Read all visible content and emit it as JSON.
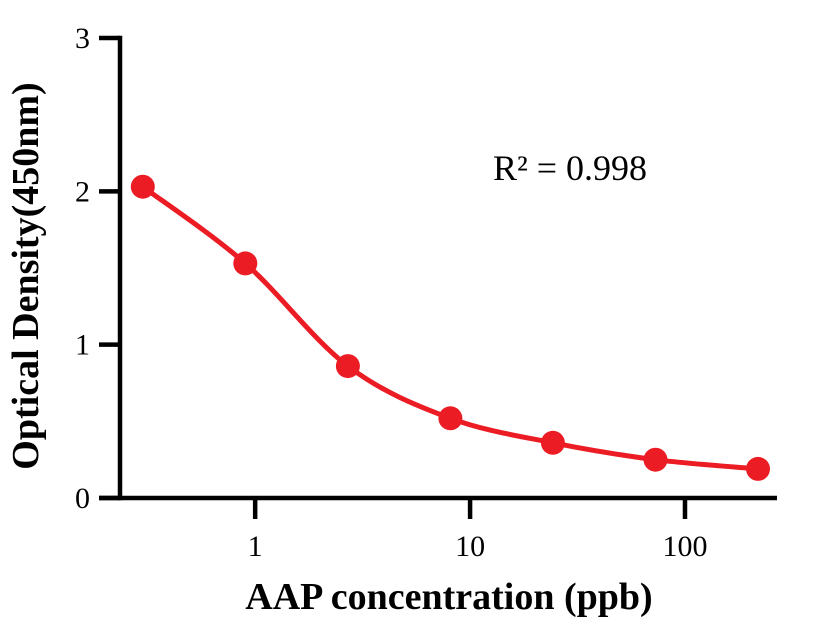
{
  "chart_data": {
    "type": "scatter",
    "subtype": "scatter-with-fit-curve",
    "x": [
      0.3,
      0.9,
      2.7,
      8.1,
      24.3,
      72.9,
      218.7
    ],
    "y": [
      2.03,
      1.53,
      0.86,
      0.52,
      0.36,
      0.25,
      0.19
    ],
    "title": "",
    "xlabel": "AAP concentration (ppb)",
    "ylabel": "Optical Density(450nm)",
    "annotation": "R² = 0.998",
    "x_scale": "log",
    "xlim": [
      0.235,
      268
    ],
    "ylim": [
      0,
      3
    ],
    "x_ticks": [
      1,
      10,
      100
    ],
    "x_ticklabels": [
      "1",
      "10",
      "100"
    ],
    "y_ticks": [
      0,
      1,
      2,
      3
    ],
    "y_ticklabels": [
      "0",
      "1",
      "2",
      "3"
    ],
    "grid": false,
    "legend": null,
    "series_color": "#EC1C24",
    "axis_color": "#000000",
    "background_color": "#ffffff",
    "marker_radius": 12,
    "curve_width": 5,
    "axis_width": 4.5,
    "tick_length": 21
  }
}
